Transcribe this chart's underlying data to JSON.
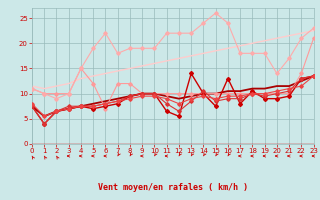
{
  "xlabel": "Vent moyen/en rafales ( km/h )",
  "xlim": [
    0,
    23
  ],
  "ylim": [
    0,
    27
  ],
  "yticks": [
    0,
    5,
    10,
    15,
    20,
    25
  ],
  "xticks": [
    0,
    1,
    2,
    3,
    4,
    5,
    6,
    7,
    8,
    9,
    10,
    11,
    12,
    13,
    14,
    15,
    16,
    17,
    18,
    19,
    20,
    21,
    22,
    23
  ],
  "background_color": "#cce8e8",
  "grid_color": "#99bbbb",
  "lines": [
    {
      "y": [
        11,
        10,
        10,
        10,
        15,
        12,
        7,
        12,
        12,
        10,
        10,
        10,
        10,
        10,
        10,
        10,
        10,
        10,
        10,
        10,
        10,
        10,
        14,
        21
      ],
      "color": "#ff9999",
      "lw": 0.8,
      "marker": "D",
      "ms": 1.8
    },
    {
      "y": [
        11,
        10,
        9,
        10,
        15,
        19,
        22,
        18,
        19,
        19,
        19,
        22,
        22,
        22,
        24,
        26,
        24,
        18,
        18,
        18,
        14,
        17,
        21,
        23
      ],
      "color": "#ffaaaa",
      "lw": 0.8,
      "marker": "D",
      "ms": 1.8
    },
    {
      "y": [
        11.5,
        11,
        11.5,
        12,
        13,
        13.5,
        14,
        14.5,
        15,
        15.5,
        16,
        16.5,
        17,
        17.5,
        18,
        18.5,
        19,
        19.5,
        20,
        20.5,
        21,
        21.5,
        22,
        22.5
      ],
      "color": "#ffcccc",
      "lw": 1.0,
      "marker": null,
      "ms": 0
    },
    {
      "y": [
        7.5,
        4,
        6.5,
        7,
        7.5,
        7,
        7.5,
        8,
        9.5,
        10,
        10,
        6.5,
        5.5,
        14,
        10,
        7.5,
        13,
        8,
        10.5,
        9,
        9,
        9.5,
        13,
        13.5
      ],
      "color": "#cc0000",
      "lw": 1.0,
      "marker": "D",
      "ms": 2.0
    },
    {
      "y": [
        7.5,
        4,
        6.5,
        7.5,
        7.5,
        7.5,
        8,
        8.5,
        9.5,
        10,
        10,
        8,
        6.5,
        8.5,
        10.5,
        8.5,
        9,
        9,
        10,
        9.5,
        10,
        10.5,
        13,
        13.5
      ],
      "color": "#dd3333",
      "lw": 0.8,
      "marker": "D",
      "ms": 1.8
    },
    {
      "y": [
        8,
        5.5,
        6.5,
        7,
        7.5,
        7.5,
        8,
        8.5,
        9,
        9.5,
        9.5,
        9,
        8,
        9,
        9.5,
        9,
        9.5,
        9.5,
        10,
        10,
        10.5,
        11,
        11.5,
        13.5
      ],
      "color": "#ee4444",
      "lw": 0.8,
      "marker": "D",
      "ms": 1.8
    },
    {
      "y": [
        7.5,
        5.5,
        6.5,
        7,
        7.5,
        8,
        8.5,
        9,
        9.5,
        10,
        10,
        9.5,
        9,
        9.5,
        10,
        10,
        10.5,
        10.5,
        11,
        11,
        11.5,
        11.5,
        12.5,
        13.5
      ],
      "color": "#aa0000",
      "lw": 1.3,
      "marker": null,
      "ms": 0
    }
  ],
  "arrow_color": "#cc0000",
  "arrow_angles": [
    225,
    225,
    225,
    270,
    270,
    270,
    270,
    315,
    315,
    270,
    315,
    270,
    315,
    315,
    315,
    315,
    315,
    270,
    270,
    270,
    270,
    270,
    270,
    270
  ]
}
